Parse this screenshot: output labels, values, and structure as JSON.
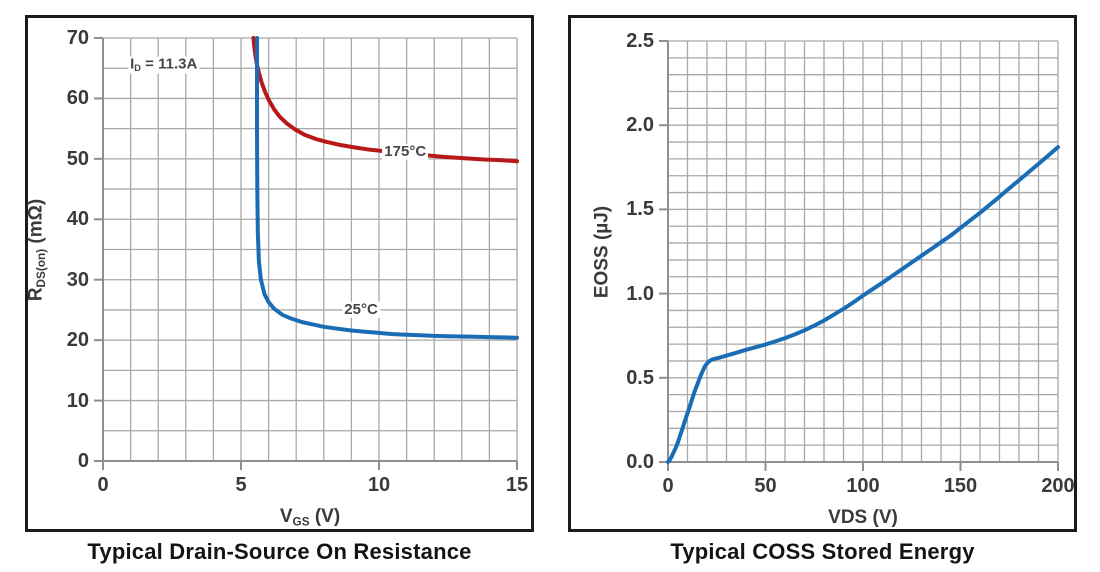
{
  "colors": {
    "background": "#ffffff",
    "panel_border": "#1b1b1b",
    "grid": "#a8a8a8",
    "axis": "#8f8f8f",
    "tick_label": "#3a3a3a",
    "annotation": "#474747",
    "title": "#141414",
    "curve_red": "#b81818",
    "curve_blue": "#1a6cb5"
  },
  "chart_data": [
    {
      "type": "line",
      "title": "Typical Drain-Source On Resistance",
      "xlabel_parts": [
        {
          "t": "V"
        },
        {
          "t": "GS",
          "sub": true
        },
        {
          "t": " (V)"
        }
      ],
      "ylabel_parts": [
        {
          "t": "R"
        },
        {
          "t": "DS(on)",
          "sub": true
        },
        {
          "t": " (mΩ)"
        }
      ],
      "xlim": [
        0,
        15
      ],
      "ylim": [
        0,
        70
      ],
      "x_minor": 1,
      "y_minor": 5,
      "grid": true,
      "legend": "inline-labels",
      "x_ticks": [
        {
          "v": 0,
          "label": "0"
        },
        {
          "v": 5,
          "label": "5"
        },
        {
          "v": 10,
          "label": "10"
        },
        {
          "v": 15,
          "label": "15"
        }
      ],
      "y_ticks": [
        {
          "v": 0,
          "label": "0"
        },
        {
          "v": 10,
          "label": "10"
        },
        {
          "v": 20,
          "label": "20"
        },
        {
          "v": 30,
          "label": "30"
        },
        {
          "v": 40,
          "label": "40"
        },
        {
          "v": 50,
          "label": "50"
        },
        {
          "v": 60,
          "label": "60"
        },
        {
          "v": 70,
          "label": "70"
        }
      ],
      "series": [
        {
          "name": "175°C",
          "color": "#b81818",
          "points": [
            [
              5.45,
              70
            ],
            [
              5.5,
              67.8
            ],
            [
              5.57,
              65.8
            ],
            [
              5.65,
              64.2
            ],
            [
              5.75,
              62.6
            ],
            [
              5.88,
              61.0
            ],
            [
              6.02,
              59.6
            ],
            [
              6.2,
              58.2
            ],
            [
              6.4,
              57.0
            ],
            [
              6.65,
              55.9
            ],
            [
              6.95,
              54.9
            ],
            [
              7.3,
              54.0
            ],
            [
              7.7,
              53.3
            ],
            [
              8.1,
              52.8
            ],
            [
              8.6,
              52.3
            ],
            [
              9.1,
              51.9
            ],
            [
              9.7,
              51.5
            ],
            [
              10.3,
              51.2
            ],
            [
              11.0,
              50.9
            ],
            [
              11.7,
              50.6
            ],
            [
              12.4,
              50.3
            ],
            [
              13.1,
              50.1
            ],
            [
              13.8,
              49.9
            ],
            [
              14.4,
              49.8
            ],
            [
              15.0,
              49.6
            ]
          ]
        },
        {
          "name": "25°C",
          "color": "#1a6cb5",
          "points": [
            [
              5.58,
              70
            ],
            [
              5.58,
              55
            ],
            [
              5.59,
              45
            ],
            [
              5.61,
              38
            ],
            [
              5.65,
              33
            ],
            [
              5.72,
              30
            ],
            [
              5.85,
              27.6
            ],
            [
              6.0,
              26.3
            ],
            [
              6.2,
              25.2
            ],
            [
              6.5,
              24.2
            ],
            [
              6.8,
              23.6
            ],
            [
              7.2,
              23.0
            ],
            [
              7.6,
              22.6
            ],
            [
              8.0,
              22.2
            ],
            [
              8.5,
              21.9
            ],
            [
              9.0,
              21.6
            ],
            [
              9.5,
              21.4
            ],
            [
              10.0,
              21.2
            ],
            [
              10.5,
              21.0
            ],
            [
              11.0,
              20.9
            ],
            [
              11.5,
              20.8
            ],
            [
              12.0,
              20.7
            ],
            [
              12.5,
              20.65
            ],
            [
              13.0,
              20.6
            ],
            [
              13.5,
              20.55
            ],
            [
              14.0,
              20.5
            ],
            [
              14.5,
              20.45
            ],
            [
              15.0,
              20.4
            ]
          ]
        }
      ],
      "annotations": [
        {
          "x": 2.2,
          "y": 65.5,
          "parts": [
            {
              "t": "I"
            },
            {
              "t": "D",
              "sub": true
            },
            {
              "t": " = 11.3A"
            }
          ]
        },
        {
          "x": 10.95,
          "y": 51.2,
          "parts": [
            {
              "t": "175°C"
            }
          ]
        },
        {
          "x": 9.35,
          "y": 25.0,
          "parts": [
            {
              "t": "25°C"
            }
          ]
        }
      ]
    },
    {
      "type": "line",
      "title": "Typical COSS Stored Energy",
      "xlabel_parts": [
        {
          "t": "VDS (V)"
        }
      ],
      "ylabel_parts": [
        {
          "t": "EOSS (µJ)"
        }
      ],
      "xlim": [
        0,
        200
      ],
      "ylim": [
        0,
        2.5
      ],
      "x_minor": 10,
      "y_minor": 0.1,
      "grid": true,
      "legend": "none",
      "x_ticks": [
        {
          "v": 0,
          "label": "0"
        },
        {
          "v": 50,
          "label": "50"
        },
        {
          "v": 100,
          "label": "100"
        },
        {
          "v": 150,
          "label": "150"
        },
        {
          "v": 200,
          "label": "200"
        }
      ],
      "y_ticks": [
        {
          "v": 0,
          "label": "0.0"
        },
        {
          "v": 0.5,
          "label": "0.5"
        },
        {
          "v": 1.0,
          "label": "1.0"
        },
        {
          "v": 1.5,
          "label": "1.5"
        },
        {
          "v": 2.0,
          "label": "2.0"
        },
        {
          "v": 2.5,
          "label": "2.5"
        }
      ],
      "series": [
        {
          "name": "EOSS",
          "color": "#1a6cb5",
          "points": [
            [
              0,
              0
            ],
            [
              1,
              0.015
            ],
            [
              2,
              0.035
            ],
            [
              3,
              0.06
            ],
            [
              4,
              0.085
            ],
            [
              5,
              0.115
            ],
            [
              6,
              0.15
            ],
            [
              7,
              0.185
            ],
            [
              8,
              0.22
            ],
            [
              9,
              0.255
            ],
            [
              10,
              0.29
            ],
            [
              11,
              0.325
            ],
            [
              12,
              0.36
            ],
            [
              13,
              0.395
            ],
            [
              14,
              0.43
            ],
            [
              15,
              0.46
            ],
            [
              16,
              0.49
            ],
            [
              17,
              0.52
            ],
            [
              18,
              0.545
            ],
            [
              19,
              0.57
            ],
            [
              20,
              0.585
            ],
            [
              21,
              0.597
            ],
            [
              22,
              0.605
            ],
            [
              23,
              0.61
            ],
            [
              24,
              0.613
            ],
            [
              25,
              0.616
            ],
            [
              27,
              0.622
            ],
            [
              30,
              0.632
            ],
            [
              33,
              0.642
            ],
            [
              36,
              0.652
            ],
            [
              40,
              0.666
            ],
            [
              45,
              0.682
            ],
            [
              50,
              0.698
            ],
            [
              55,
              0.716
            ],
            [
              60,
              0.736
            ],
            [
              65,
              0.758
            ],
            [
              70,
              0.782
            ],
            [
              75,
              0.81
            ],
            [
              80,
              0.84
            ],
            [
              85,
              0.875
            ],
            [
              90,
              0.91
            ],
            [
              95,
              0.948
            ],
            [
              100,
              0.988
            ],
            [
              105,
              1.027
            ],
            [
              110,
              1.065
            ],
            [
              115,
              1.105
            ],
            [
              120,
              1.145
            ],
            [
              125,
              1.185
            ],
            [
              130,
              1.225
            ],
            [
              135,
              1.265
            ],
            [
              140,
              1.305
            ],
            [
              145,
              1.345
            ],
            [
              150,
              1.39
            ],
            [
              155,
              1.435
            ],
            [
              160,
              1.48
            ],
            [
              165,
              1.528
            ],
            [
              170,
              1.575
            ],
            [
              175,
              1.625
            ],
            [
              180,
              1.673
            ],
            [
              185,
              1.722
            ],
            [
              190,
              1.77
            ],
            [
              195,
              1.82
            ],
            [
              200,
              1.87
            ]
          ]
        }
      ],
      "annotations": []
    }
  ]
}
